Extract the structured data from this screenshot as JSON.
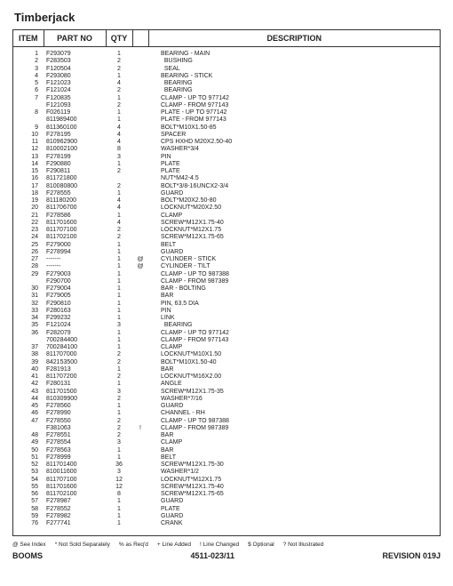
{
  "header": {
    "brand": "Timberjack"
  },
  "columns": {
    "item": "ITEM",
    "part_no": "PART NO",
    "qty": "QTY",
    "description": "DESCRIPTION"
  },
  "legend": [
    "@ See Index",
    "* Not Sold Separately",
    "% as Req'd",
    "+ Line Added",
    "! Line Changed",
    "$ Optional",
    "? Not Illustrated"
  ],
  "footer": {
    "left": "BOOMS",
    "center": "4511-023/11",
    "right": "REVISION  019J"
  },
  "rows": [
    {
      "item": "1",
      "part": "F293079",
      "qty": "1",
      "mark": "",
      "desc": "BEARING - MAIN"
    },
    {
      "item": "2",
      "part": "F283503",
      "qty": "2",
      "mark": "",
      "desc": "  BUSHING"
    },
    {
      "item": "3",
      "part": "F120504",
      "qty": "2",
      "mark": "",
      "desc": "  SEAL"
    },
    {
      "item": "4",
      "part": "F293080",
      "qty": "1",
      "mark": "",
      "desc": "BEARING - STICK"
    },
    {
      "item": "5",
      "part": "F121023",
      "qty": "4",
      "mark": "",
      "desc": "  BEARING"
    },
    {
      "item": "6",
      "part": "F121024",
      "qty": "2",
      "mark": "",
      "desc": "  BEARING"
    },
    {
      "item": "7",
      "part": "F120835",
      "qty": "1",
      "mark": "",
      "desc": "CLAMP - UP TO 977142"
    },
    {
      "item": "",
      "part": "F121093",
      "qty": "2",
      "mark": "",
      "desc": "CLAMP - FROM 977143"
    },
    {
      "item": "8",
      "part": "F026119",
      "qty": "1",
      "mark": "",
      "desc": "PLATE - UP TO 977142"
    },
    {
      "item": "",
      "part": "811989400",
      "qty": "1",
      "mark": "",
      "desc": "PLATE - FROM 977143"
    },
    {
      "item": "9",
      "part": "811360100",
      "qty": "4",
      "mark": "",
      "desc": "BOLT*M10X1.50-85"
    },
    {
      "item": "10",
      "part": "F278195",
      "qty": "4",
      "mark": "",
      "desc": "SPACER"
    },
    {
      "item": "11",
      "part": "810962900",
      "qty": "4",
      "mark": "",
      "desc": "CPS HXHD M20X2.50-40"
    },
    {
      "item": "12",
      "part": "810002100",
      "qty": "8",
      "mark": "",
      "desc": "WASHER*3/4"
    },
    {
      "item": "13",
      "part": "F278199",
      "qty": "3",
      "mark": "",
      "desc": "PIN"
    },
    {
      "item": "14",
      "part": "F290880",
      "qty": "1",
      "mark": "",
      "desc": "PLATE"
    },
    {
      "item": "15",
      "part": "F290811",
      "qty": "2",
      "mark": "",
      "desc": "PLATE"
    },
    {
      "item": "16",
      "part": "811721800",
      "qty": "",
      "mark": "",
      "desc": "NUT*M42-4.5"
    },
    {
      "item": "17",
      "part": "810080800",
      "qty": "2",
      "mark": "",
      "desc": "BOLT*3/8-16UNCX2-3/4"
    },
    {
      "item": "18",
      "part": "F278555",
      "qty": "1",
      "mark": "",
      "desc": "GUARD"
    },
    {
      "item": "19",
      "part": "811180200",
      "qty": "4",
      "mark": "",
      "desc": "BOLT*M20X2.50-80"
    },
    {
      "item": "20",
      "part": "811706700",
      "qty": "4",
      "mark": "",
      "desc": "LOCKNUT*M20X2.50"
    },
    {
      "item": "21",
      "part": "F278586",
      "qty": "1",
      "mark": "",
      "desc": "CLAMP"
    },
    {
      "item": "22",
      "part": "811701600",
      "qty": "4",
      "mark": "",
      "desc": "SCREW*M12X1.75-40"
    },
    {
      "item": "23",
      "part": "811707100",
      "qty": "2",
      "mark": "",
      "desc": "LOCKNUT*M12X1.75"
    },
    {
      "item": "24",
      "part": "811702100",
      "qty": "2",
      "mark": "",
      "desc": "SCREW*M12X1.75-65"
    },
    {
      "item": "25",
      "part": "F279000",
      "qty": "1",
      "mark": "",
      "desc": "BELT"
    },
    {
      "item": "26",
      "part": "F278994",
      "qty": "1",
      "mark": "",
      "desc": "GUARD"
    },
    {
      "item": "27",
      "part": "-------",
      "qty": "1",
      "mark": "@",
      "desc": "CYLINDER - STICK"
    },
    {
      "item": "28",
      "part": "-------",
      "qty": "1",
      "mark": "@",
      "desc": "CYLINDER - TILT"
    },
    {
      "item": "29",
      "part": "F279003",
      "qty": "1",
      "mark": "",
      "desc": "CLAMP - UP TO 987388"
    },
    {
      "item": "",
      "part": "F290700",
      "qty": "1",
      "mark": "",
      "desc": "CLAMP - FROM 987389"
    },
    {
      "item": "30",
      "part": "F279004",
      "qty": "1",
      "mark": "",
      "desc": "BAR - BOLTING"
    },
    {
      "item": "31",
      "part": "F279005",
      "qty": "1",
      "mark": "",
      "desc": "BAR"
    },
    {
      "item": "32",
      "part": "F290810",
      "qty": "1",
      "mark": "",
      "desc": "PIN, 63.5 DIA"
    },
    {
      "item": "33",
      "part": "F280163",
      "qty": "1",
      "mark": "",
      "desc": "PIN"
    },
    {
      "item": "34",
      "part": "F299232",
      "qty": "1",
      "mark": "",
      "desc": "LINK"
    },
    {
      "item": "35",
      "part": "F121024",
      "qty": "3",
      "mark": "",
      "desc": "  BEARING"
    },
    {
      "item": "36",
      "part": "F282079",
      "qty": "1",
      "mark": "",
      "desc": "CLAMP - UP TO 977142"
    },
    {
      "item": "",
      "part": "700284400",
      "qty": "1",
      "mark": "",
      "desc": "CLAMP - FROM 977143"
    },
    {
      "item": "37",
      "part": "700284100",
      "qty": "1",
      "mark": "",
      "desc": "CLAMP"
    },
    {
      "item": "38",
      "part": "811707000",
      "qty": "2",
      "mark": "",
      "desc": "LOCKNUT*M10X1.50"
    },
    {
      "item": "39",
      "part": "842153500",
      "qty": "2",
      "mark": "",
      "desc": "BOLT*M10X1.50-40"
    },
    {
      "item": "40",
      "part": "F281913",
      "qty": "1",
      "mark": "",
      "desc": "BAR"
    },
    {
      "item": "41",
      "part": "811707200",
      "qty": "2",
      "mark": "",
      "desc": "LOCKNUT*M16X2.00"
    },
    {
      "item": "42",
      "part": "F280131",
      "qty": "1",
      "mark": "",
      "desc": "ANGLE"
    },
    {
      "item": "43",
      "part": "811701500",
      "qty": "3",
      "mark": "",
      "desc": "SCREW*M12X1.75-35"
    },
    {
      "item": "44",
      "part": "810309900",
      "qty": "2",
      "mark": "",
      "desc": "WASHER*7/16"
    },
    {
      "item": "45",
      "part": "F278560",
      "qty": "1",
      "mark": "",
      "desc": "GUARD"
    },
    {
      "item": "46",
      "part": "F278990",
      "qty": "1",
      "mark": "",
      "desc": "CHANNEL - RH"
    },
    {
      "item": "47",
      "part": "F278550",
      "qty": "2",
      "mark": "",
      "desc": "CLAMP - UP TO 987388"
    },
    {
      "item": "",
      "part": "F381063",
      "qty": "2",
      "mark": "!",
      "desc": "CLAMP - FROM 987389"
    },
    {
      "item": "48",
      "part": "F278551",
      "qty": "2",
      "mark": "",
      "desc": "BAR"
    },
    {
      "item": "49",
      "part": "F278554",
      "qty": "3",
      "mark": "",
      "desc": "CLAMP"
    },
    {
      "item": "50",
      "part": "F278563",
      "qty": "1",
      "mark": "",
      "desc": "BAR"
    },
    {
      "item": "51",
      "part": "F278999",
      "qty": "1",
      "mark": "",
      "desc": "BELT"
    },
    {
      "item": "52",
      "part": "811701400",
      "qty": "36",
      "mark": "",
      "desc": "SCREW*M12X1.75-30"
    },
    {
      "item": "53",
      "part": "810011600",
      "qty": "3",
      "mark": "",
      "desc": "WASHER*1/2"
    },
    {
      "item": "54",
      "part": "811707100",
      "qty": "12",
      "mark": "",
      "desc": "LOCKNUT*M12X1.75"
    },
    {
      "item": "55",
      "part": "811701600",
      "qty": "12",
      "mark": "",
      "desc": "SCREW*M12X1.75-40"
    },
    {
      "item": "56",
      "part": "811702100",
      "qty": "8",
      "mark": "",
      "desc": "SCREW*M12X1.75-65"
    },
    {
      "item": "57",
      "part": "F278987",
      "qty": "1",
      "mark": "",
      "desc": "GUARD"
    },
    {
      "item": "58",
      "part": "F278552",
      "qty": "1",
      "mark": "",
      "desc": "PLATE"
    },
    {
      "item": "59",
      "part": "F278982",
      "qty": "1",
      "mark": "",
      "desc": "GUARD"
    },
    {
      "item": "76",
      "part": "F277741",
      "qty": "1",
      "mark": "",
      "desc": "CRANK"
    }
  ]
}
